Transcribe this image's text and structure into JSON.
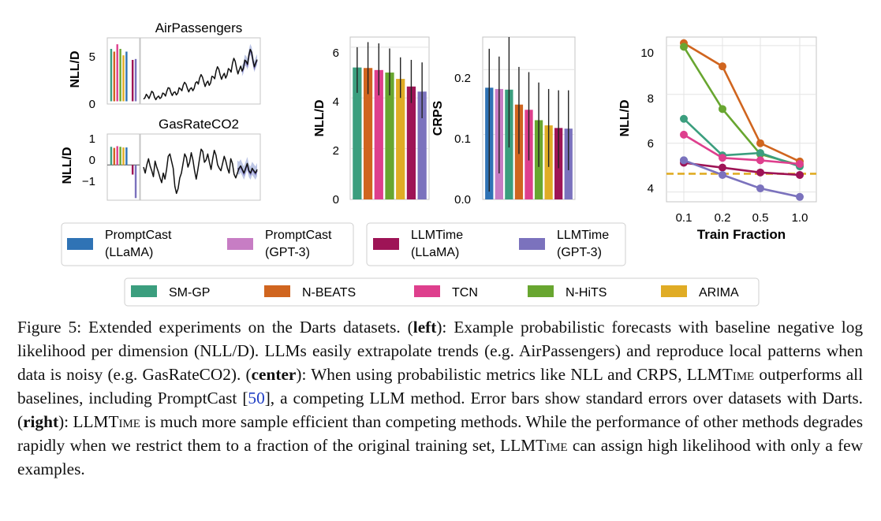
{
  "colors": {
    "PromptCast (LLaMA)": "#2f73b5",
    "PromptCast (GPT-3)": "#c77dc4",
    "LLMTime (LLaMA)": "#9e1456",
    "LLMTime (GPT-3)": "#7b72bd",
    "SM-GP": "#3b9e7e",
    "N-BEATS": "#d0651f",
    "TCN": "#de3f8d",
    "N-HiTS": "#68a630",
    "ARIMA": "#e0ac25",
    "forecast_band": "#a7b3dc"
  },
  "left": {
    "panels": [
      {
        "title": "AirPassengers",
        "ylabel": "NLL/D",
        "yticks": [
          "5",
          "0"
        ],
        "chart_data": {
          "type": "bar",
          "categories": [
            "SM-GP",
            "N-BEATS",
            "TCN",
            "N-HiTS",
            "ARIMA",
            "PromptCast (LLaMA)",
            "PromptCast (GPT-3)",
            "LLMTime (LLaMA)",
            "LLMTime (GPT-3)"
          ],
          "values": [
            5.7,
            5.4,
            6.2,
            5.7,
            5.0,
            5.4,
            null,
            4.5,
            4.6
          ],
          "ylim": [
            -0.3,
            6.9
          ]
        },
        "series_chart": {
          "type": "line",
          "values": [
            3,
            5,
            11,
            8,
            4,
            10,
            16,
            14,
            6,
            2,
            6,
            8,
            4,
            6,
            13,
            12,
            8,
            16,
            22,
            21,
            14,
            9,
            14,
            15,
            10,
            13,
            22,
            20,
            17,
            26,
            31,
            28,
            21,
            15,
            20,
            22,
            17,
            21,
            30,
            32,
            28,
            38,
            44,
            40,
            32,
            24,
            30,
            33,
            26,
            30,
            41,
            40,
            37,
            50,
            57,
            53,
            43,
            36,
            42,
            46,
            38,
            43,
            54,
            52,
            48,
            63,
            71,
            66,
            54,
            45,
            52,
            58,
            50,
            55,
            68,
            66,
            61,
            77,
            86,
            81,
            67,
            57,
            64,
            69
          ],
          "ylim": [
            0,
            100
          ]
        },
        "forecast": {
          "median": [
            50,
            55,
            68,
            66,
            61,
            77,
            86,
            81,
            67,
            57,
            64,
            69
          ],
          "band": 9
        }
      },
      {
        "title": "GasRateCO2",
        "ylabel": "NLL/D",
        "yticks": [
          "1",
          "0",
          "−1"
        ],
        "chart_data": {
          "type": "bar",
          "categories": [
            "SM-GP",
            "N-BEATS",
            "TCN",
            "N-HiTS",
            "ARIMA",
            "PromptCast (LLaMA)",
            "PromptCast (GPT-3)",
            "LLMTime (LLaMA)",
            "LLMTime (GPT-3)"
          ],
          "values": [
            0.85,
            0.8,
            0.88,
            0.85,
            0.82,
            0.82,
            null,
            -0.45,
            -1.55
          ],
          "ylim": [
            -1.65,
            1.45
          ]
        },
        "series_chart": {
          "type": "line",
          "values": [
            50,
            40,
            54,
            64,
            52,
            44,
            34,
            60,
            50,
            42,
            32,
            24,
            40,
            30,
            46,
            68,
            72,
            60,
            48,
            18,
            6,
            14,
            32,
            40,
            56,
            72,
            66,
            50,
            58,
            74,
            62,
            44,
            30,
            46,
            64,
            80,
            76,
            58,
            62,
            72,
            58,
            46,
            64,
            78,
            70,
            54,
            48,
            44,
            56,
            68,
            60,
            48,
            40,
            64,
            56,
            38,
            32,
            40,
            48,
            52,
            46,
            40,
            48,
            56,
            44,
            40,
            48,
            44,
            40,
            46
          ],
          "ylim": [
            0,
            100
          ]
        },
        "forecast": {
          "median": [
            50,
            48,
            52,
            46,
            40,
            48,
            56,
            44,
            40,
            48,
            44,
            40,
            46
          ],
          "band": 11
        }
      }
    ]
  },
  "center": {
    "nll": {
      "ylabel": "NLL/D",
      "yticks": [
        "6",
        "4",
        "2",
        "0"
      ],
      "chart_data": {
        "type": "bar",
        "categories": [
          "SM-GP",
          "N-BEATS",
          "TCN",
          "N-HiTS",
          "ARIMA",
          "LLMTime (LLaMA)",
          "LLMTime (GPT-3)"
        ],
        "values": [
          5.2,
          5.18,
          5.1,
          5.0,
          4.75,
          4.45,
          4.25
        ],
        "err_low": [
          4.2,
          4.15,
          4.1,
          4.1,
          4.0,
          3.8,
          3.2
        ],
        "err_high": [
          6.0,
          6.2,
          6.15,
          5.95,
          5.6,
          5.5,
          5.4
        ],
        "ylim": [
          0,
          6.4
        ]
      }
    },
    "crps": {
      "ylabel": "CRPS",
      "yticks": [
        "0.2",
        "0.1",
        "0.0"
      ],
      "chart_data": {
        "type": "bar",
        "categories": [
          "PromptCast (LLaMA)",
          "PromptCast (GPT-3)",
          "SM-GP",
          "N-BEATS",
          "TCN",
          "N-HiTS",
          "ARIMA",
          "LLMTime (LLaMA)",
          "LLMTime (GPT-3)"
        ],
        "values": [
          0.172,
          0.17,
          0.169,
          0.146,
          0.138,
          0.122,
          0.114,
          0.11,
          0.109
        ],
        "err_low": [
          0.012,
          0.04,
          0.08,
          0.07,
          0.06,
          0.05,
          0.05,
          0.048,
          0.045
        ],
        "err_high": [
          0.232,
          0.22,
          0.25,
          0.204,
          0.196,
          0.18,
          0.17,
          0.168,
          0.168
        ],
        "ylim": [
          0,
          0.25
        ]
      }
    }
  },
  "right": {
    "ylabel": "NLL/D",
    "xlabel": "Train Fraction",
    "yticks": [
      "10",
      "8",
      "6",
      "4"
    ],
    "chart_data": {
      "type": "line",
      "x": [
        "0.1",
        "0.2",
        "0.5",
        "1.0"
      ],
      "ylim": [
        3.6,
        10.35
      ],
      "series": [
        {
          "name": "N-BEATS",
          "values": [
            10.1,
            9.15,
            6.0,
            5.25
          ]
        },
        {
          "name": "N-HiTS",
          "values": [
            9.95,
            7.4,
            5.55,
            5.1
          ]
        },
        {
          "name": "SM-GP",
          "values": [
            7.0,
            5.5,
            5.6,
            5.05
          ]
        },
        {
          "name": "TCN",
          "values": [
            6.35,
            5.4,
            5.3,
            5.15
          ]
        },
        {
          "name": "PromptCast (LLaMA)",
          "values": [
            5.3,
            null,
            null,
            null
          ]
        },
        {
          "name": "LLMTime (LLaMA)",
          "values": [
            5.2,
            5.0,
            4.8,
            4.7
          ]
        },
        {
          "name": "LLMTime (GPT-3)",
          "values": [
            5.3,
            4.7,
            4.15,
            3.8
          ]
        }
      ],
      "hline": {
        "name": "ARIMA",
        "value": 4.75
      }
    }
  },
  "legend": {
    "row1": [
      {
        "name": "PromptCast (LLaMA)",
        "line1": "PromptCast",
        "line2": "(LLaMA)"
      },
      {
        "name": "PromptCast (GPT-3)",
        "line1": "PromptCast",
        "line2": "(GPT-3)"
      },
      {
        "name": "LLMTime (LLaMA)",
        "line1": "LLMTime",
        "line2": "(LLaMA)"
      },
      {
        "name": "LLMTime (GPT-3)",
        "line1": "LLMTime",
        "line2": "(GPT-3)"
      }
    ],
    "row2": [
      "SM-GP",
      "N-BEATS",
      "TCN",
      "N-HiTS",
      "ARIMA"
    ]
  },
  "caption": {
    "figure_label": "Figure 5:",
    "intro": " Extended experiments on the Darts datasets. (",
    "left_word": "left",
    "left_text": "): Example probabilistic forecasts with baseline negative log likelihood per dimension (NLL/D). LLMs easily extrapolate trends (e.g. AirPassengers) and reproduce local patterns when data is noisy (e.g. GasRateCO2). (",
    "center_word": "center",
    "center_text_a": "): When using probabilistic metrics like NLL and CRPS, ",
    "llmtime": "LLMTime",
    "center_text_b": " outperforms all baselines, including PromptCast [",
    "ref": "50",
    "center_text_c": "], a competing LLM method. Error bars show standard errors over datasets with Darts. (",
    "right_word": "right",
    "right_text_a": "): ",
    "right_text_b": " is much more sample efficient than competing methods. While the performance of other methods degrades rapidly when we restrict them to a fraction of the original training set, ",
    "right_text_c": " can assign high likelihood with only a few examples."
  }
}
